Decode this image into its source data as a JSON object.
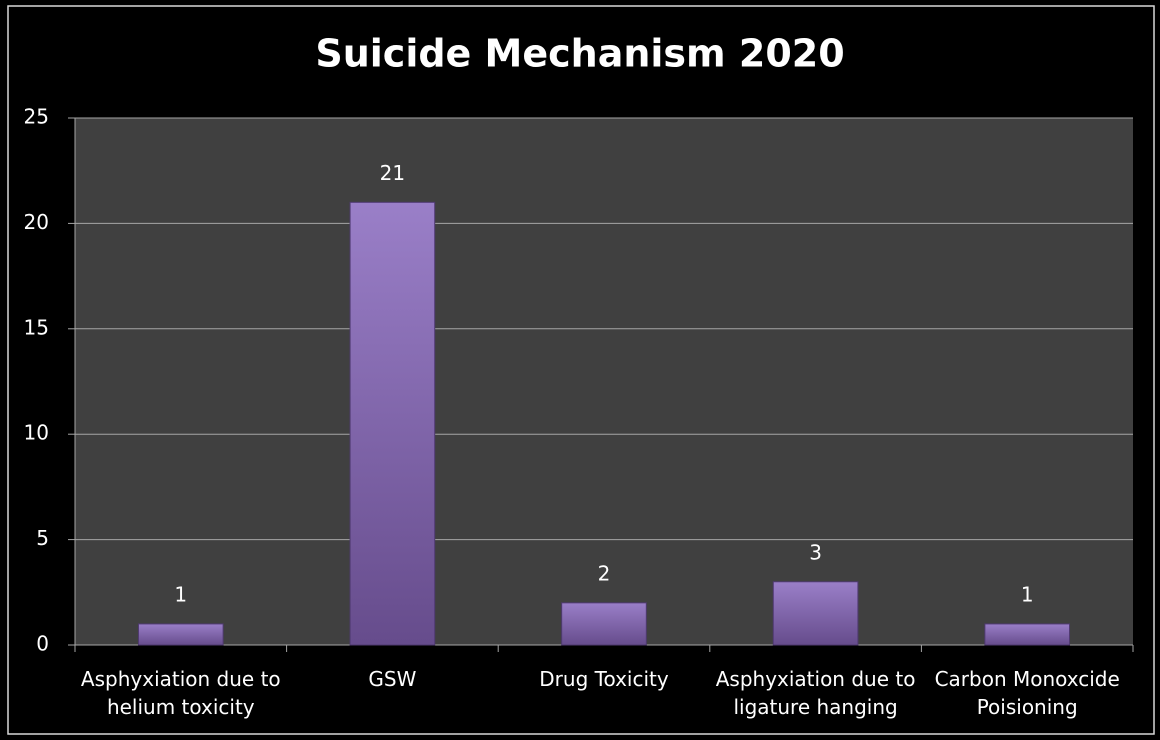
{
  "chart_data": {
    "type": "bar",
    "title": "Suicide Mechanism 2020",
    "categories": [
      "Asphyxiation due to helium toxicity",
      "GSW",
      "Drug Toxicity",
      "Asphyxiation due to ligature hanging",
      "Carbon Monoxcide Poisioning"
    ],
    "values": [
      1,
      21,
      2,
      3,
      1
    ],
    "color": "#8064a2",
    "ylim": [
      0,
      25
    ],
    "yticks": [
      0,
      5,
      10,
      15,
      20,
      25
    ],
    "grid": true
  }
}
